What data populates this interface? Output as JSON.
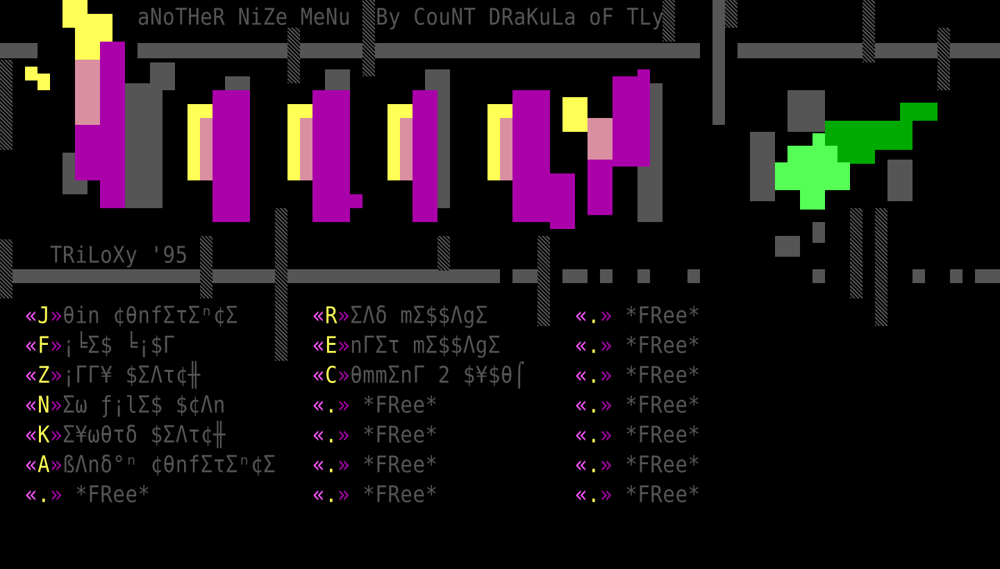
{
  "header": {
    "title": "aNoTHeR NiZe MeNu  By CouNT DRaKuLa oF TLy",
    "group": "TRiLoXy '95"
  },
  "colors": {
    "grey": "#555555",
    "magenta": "#aa00aa",
    "light_magenta": "#ff55ff",
    "yellow": "#ffff55",
    "green": "#00aa00",
    "light_green": "#55ff55",
    "background": "#000000"
  },
  "menu": {
    "columns": [
      [
        {
          "key": "J",
          "label": "θin ¢θnfΣτΣⁿ¢Σ"
        },
        {
          "key": "F",
          "label": "¡╘Σ$ ╘¡$Γ"
        },
        {
          "key": "Z",
          "label": "¡ΓΓ¥ $ΣΛτ¢╫"
        },
        {
          "key": "N",
          "label": "Σω ƒ¡lΣ$ $¢Λn"
        },
        {
          "key": "K",
          "label": "Σ¥ωθτδ $ΣΛτ¢╫"
        },
        {
          "key": "A",
          "label": "ßΛnδ°ⁿ ¢θnfΣτΣⁿ¢Σ"
        },
        {
          "key": ".",
          "label": " *FRee*"
        }
      ],
      [
        {
          "key": "R",
          "label": "ΣΛδ mΣ$$ΛgΣ"
        },
        {
          "key": "E",
          "label": "nΓΣτ mΣ$$ΛgΣ"
        },
        {
          "key": "C",
          "label": "θmmΣnΓ 2 $¥$θ⌠"
        },
        {
          "key": ".",
          "label": " *FRee*"
        },
        {
          "key": ".",
          "label": " *FRee*"
        },
        {
          "key": ".",
          "label": " *FRee*"
        },
        {
          "key": ".",
          "label": " *FRee*"
        }
      ],
      [
        {
          "key": ".",
          "label": " *FRee*"
        },
        {
          "key": ".",
          "label": " *FRee*"
        },
        {
          "key": ".",
          "label": " *FRee*"
        },
        {
          "key": ".",
          "label": " *FRee*"
        },
        {
          "key": ".",
          "label": " *FRee*"
        },
        {
          "key": ".",
          "label": " *FRee*"
        },
        {
          "key": ".",
          "label": " *FRee*"
        }
      ]
    ]
  }
}
